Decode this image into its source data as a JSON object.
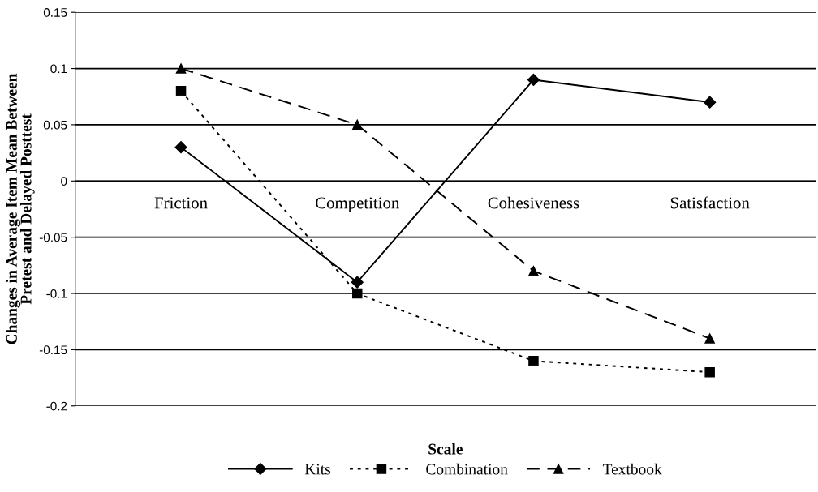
{
  "chart_data": {
    "type": "line",
    "xlabel": "Scale",
    "ylabel": "Changes in Average Item Mean Between\nPretest and Delayed Posttest",
    "categories": [
      "Friction",
      "Competition",
      "Cohesiveness",
      "Satisfaction"
    ],
    "series": [
      {
        "name": "Kits",
        "color": "#000000",
        "marker": "diamond",
        "line_style": "solid",
        "values": [
          0.03,
          -0.09,
          0.09,
          0.07
        ]
      },
      {
        "name": "Combination",
        "color": "#000000",
        "marker": "square",
        "line_style": "dotted",
        "values": [
          0.08,
          -0.1,
          -0.16,
          -0.17
        ]
      },
      {
        "name": "Textbook",
        "color": "#000000",
        "marker": "triangle",
        "line_style": "dashed",
        "values": [
          0.1,
          0.05,
          -0.08,
          -0.14
        ]
      }
    ],
    "ylim": [
      -0.2,
      0.15
    ],
    "yticks": [
      -0.2,
      -0.15,
      -0.1,
      -0.05,
      0,
      0.05,
      0.1,
      0.15
    ],
    "grid": "y",
    "legend": "bottom"
  }
}
